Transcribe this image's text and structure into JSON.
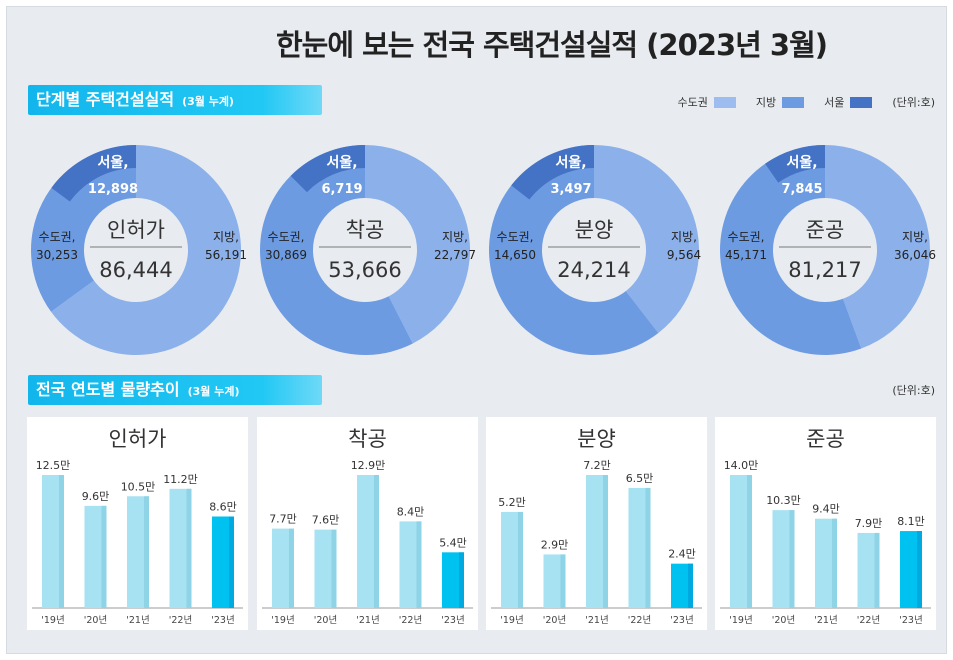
{
  "title": "한눈에 보는 전국 주택건설실적 (2023년 3월)",
  "section1": {
    "title": "단계별 주택건설실적",
    "note": "(3월 누계)"
  },
  "section2": {
    "title": "전국 연도별 물량추이",
    "note": "(3월 누계)",
    "unit": "(단위:호)"
  },
  "legend": {
    "items": [
      {
        "name": "수도권",
        "color": "#9dbdf0"
      },
      {
        "name": "지방",
        "color": "#6d9be2"
      },
      {
        "name": "서울",
        "color": "#4472c4"
      }
    ],
    "unit": "(단위:호)"
  },
  "chart_data": [
    {
      "type": "pie",
      "subtype": "donut",
      "title": "인허가",
      "total": "86,444",
      "slices": [
        {
          "name": "지방",
          "value": 56191,
          "label": "56,191"
        },
        {
          "name": "수도권",
          "value": 30253,
          "label": "30,253"
        },
        {
          "name": "서울",
          "value": 12898,
          "label": "12,898",
          "part_of": "수도권"
        }
      ]
    },
    {
      "type": "pie",
      "subtype": "donut",
      "title": "착공",
      "total": "53,666",
      "slices": [
        {
          "name": "지방",
          "value": 22797,
          "label": "22,797"
        },
        {
          "name": "수도권",
          "value": 30869,
          "label": "30,869"
        },
        {
          "name": "서울",
          "value": 6719,
          "label": "6,719",
          "part_of": "수도권"
        }
      ]
    },
    {
      "type": "pie",
      "subtype": "donut",
      "title": "분양",
      "total": "24,214",
      "slices": [
        {
          "name": "지방",
          "value": 9564,
          "label": "9,564"
        },
        {
          "name": "수도권",
          "value": 14650,
          "label": "14,650"
        },
        {
          "name": "서울",
          "value": 3497,
          "label": "3,497",
          "part_of": "수도권"
        }
      ]
    },
    {
      "type": "pie",
      "subtype": "donut",
      "title": "준공",
      "total": "81,217",
      "slices": [
        {
          "name": "지방",
          "value": 36046,
          "label": "36,046"
        },
        {
          "name": "수도권",
          "value": 45171,
          "label": "45,171"
        },
        {
          "name": "서울",
          "value": 7845,
          "label": "7,845",
          "part_of": "수도권"
        }
      ]
    },
    {
      "type": "bar",
      "title": "인허가",
      "categories": [
        "'19년",
        "'20년",
        "'21년",
        "'22년",
        "'23년"
      ],
      "values": [
        12.5,
        9.6,
        10.5,
        11.2,
        8.6
      ],
      "labels": [
        "12.5만",
        "9.6만",
        "10.5만",
        "11.2만",
        "8.6만"
      ]
    },
    {
      "type": "bar",
      "title": "착공",
      "categories": [
        "'19년",
        "'20년",
        "'21년",
        "'22년",
        "'23년"
      ],
      "values": [
        7.7,
        7.6,
        12.9,
        8.4,
        5.4
      ],
      "labels": [
        "7.7만",
        "7.6만",
        "12.9만",
        "8.4만",
        "5.4만"
      ]
    },
    {
      "type": "bar",
      "title": "분양",
      "categories": [
        "'19년",
        "'20년",
        "'21년",
        "'22년",
        "'23년"
      ],
      "values": [
        5.2,
        2.9,
        7.2,
        6.5,
        2.4
      ],
      "labels": [
        "5.2만",
        "2.9만",
        "7.2만",
        "6.5만",
        "2.4만"
      ]
    },
    {
      "type": "bar",
      "title": "준공",
      "categories": [
        "'19년",
        "'20년",
        "'21년",
        "'22년",
        "'23년"
      ],
      "values": [
        14.0,
        10.3,
        9.4,
        7.9,
        8.1
      ],
      "labels": [
        "14.0만",
        "10.3만",
        "9.4만",
        "7.9만",
        "8.1만"
      ]
    }
  ],
  "colors": {
    "jibang": "#8bb0ea",
    "sudo": "#6d9be2",
    "seoul": "#4472c4",
    "bar": "#a6e2f1",
    "bar_current": "#00c2f0"
  }
}
